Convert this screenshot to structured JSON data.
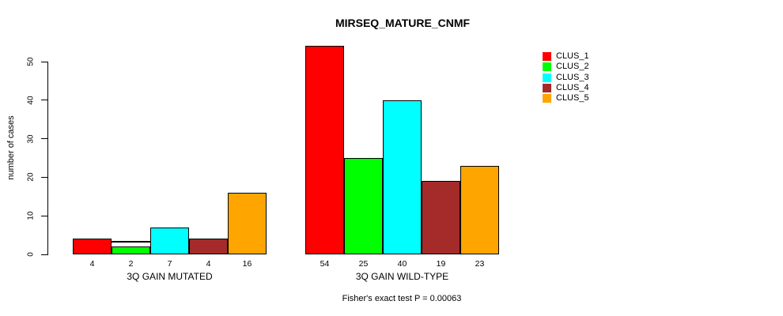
{
  "chart_data": {
    "type": "bar",
    "title": "MIRSEQ_MATURE_CNMF",
    "ylabel": "number of cases",
    "xlabel": "",
    "ylim": [
      0,
      54
    ],
    "yticks": [
      0,
      10,
      20,
      30,
      40,
      50
    ],
    "grid": false,
    "legend_position": "right-outside",
    "bar_value_labels_shown": true,
    "categories": [
      "3Q GAIN MUTATED",
      "3Q GAIN WILD-TYPE"
    ],
    "series": [
      {
        "name": "CLUS_1",
        "color": "#FF0000",
        "values": [
          4,
          54
        ]
      },
      {
        "name": "CLUS_2",
        "color": "#00FF00",
        "values": [
          2,
          25
        ]
      },
      {
        "name": "CLUS_3",
        "color": "#00FFFF",
        "values": [
          7,
          40
        ]
      },
      {
        "name": "CLUS_4",
        "color": "#A52A2A",
        "values": [
          4,
          19
        ]
      },
      {
        "name": "CLUS_5",
        "color": "#FFA500",
        "values": [
          16,
          23
        ]
      }
    ],
    "annotation": "Fisher's exact test P = 0.00063"
  }
}
